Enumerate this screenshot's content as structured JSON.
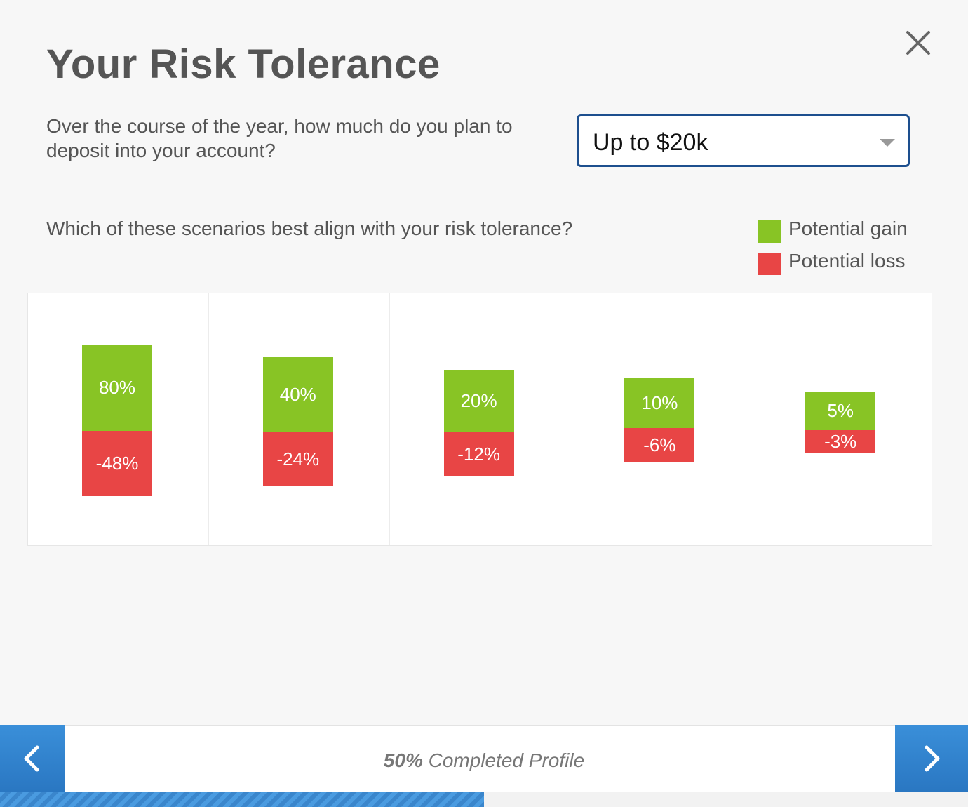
{
  "header": {
    "title": "Your Risk Tolerance",
    "close_icon": "close-icon"
  },
  "deposit": {
    "question": "Over the course of the year, how much do you plan to deposit into your account?",
    "selected": "Up to $20k"
  },
  "risk": {
    "question": "Which of these scenarios best align with your risk tolerance?",
    "legend": [
      {
        "label": "Potential gain",
        "color": "#88c425"
      },
      {
        "label": "Potential loss",
        "color": "#e84545"
      }
    ]
  },
  "chart_data": {
    "type": "bar",
    "categories": [
      "",
      "",
      "",
      "",
      ""
    ],
    "series": [
      {
        "name": "Potential gain",
        "values": [
          80,
          40,
          20,
          10,
          5
        ],
        "labels": [
          "80%",
          "40%",
          "20%",
          "10%",
          "5%"
        ]
      },
      {
        "name": "Potential loss",
        "values": [
          -48,
          -24,
          -12,
          -6,
          -3
        ],
        "labels": [
          "-48%",
          "-24%",
          "-12%",
          "-6%",
          "-3%"
        ]
      }
    ]
  },
  "footer": {
    "progress_percent": 50,
    "progress_percent_label": "50%",
    "progress_text": "Completed Profile",
    "prev_icon": "chevron-left-icon",
    "next_icon": "chevron-right-icon"
  }
}
